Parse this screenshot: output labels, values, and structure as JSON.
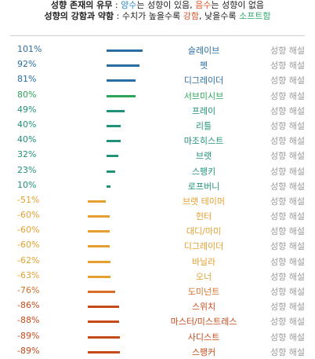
{
  "header": {
    "line1": {
      "bold_prefix": "성향 존재의 유무",
      "sep": " : ",
      "pos": "양수",
      "mid": "는 성향이 있음, ",
      "neg": "음수",
      "end": "는 성향이 없음"
    },
    "line2": {
      "bold_prefix": "성향의 강함과 약함",
      "sep": " : 수치가 높을수록 ",
      "strong": "강함",
      "mid": ", 낮을수록 ",
      "soft": "소프트함"
    }
  },
  "colors": {
    "blue": "#2b6ea3",
    "green": "#2fa35a",
    "teal": "#22917a",
    "orange": "#e5a030",
    "dark_orange": "#d86c28",
    "red_orange": "#c74a1a",
    "positive_label": "#2b8ad0",
    "negative_label": "#d8572a",
    "strong": "#d8572a",
    "soft": "#2ea86a"
  },
  "link_text": "성향 해설",
  "chart_data": {
    "type": "bar",
    "orientation": "horizontal",
    "categories": [
      "슬레이브",
      "펫",
      "디그레이더",
      "서브미시브",
      "프레이",
      "리틀",
      "마조히스트",
      "브랫",
      "스팽키",
      "로프버니",
      "브랫 테이머",
      "헌터",
      "대디/마미",
      "디그레이더",
      "바닐라",
      "오너",
      "도미넌트",
      "스위치",
      "마스터/미스트레스",
      "사디스트",
      "스팽커"
    ],
    "values": [
      101,
      92,
      81,
      80,
      49,
      40,
      40,
      32,
      23,
      10,
      -51,
      -60,
      -60,
      -60,
      -62,
      -63,
      -76,
      -86,
      -88,
      -89,
      -89
    ],
    "labels": [
      "101%",
      "92%",
      "81%",
      "80%",
      "49%",
      "40%",
      "40%",
      "32%",
      "23%",
      "10%",
      "-51%",
      "-60%",
      "-60%",
      "-60%",
      "-62%",
      "-63%",
      "-76%",
      "-86%",
      "-88%",
      "-89%",
      "-89%"
    ],
    "bar_colors": [
      "#2b6ea3",
      "#2b6ea3",
      "#2b6ea3",
      "#2fa35a",
      "#22917a",
      "#22917a",
      "#22917a",
      "#22917a",
      "#22917a",
      "#22917a",
      "#e5a030",
      "#e5a030",
      "#e5a030",
      "#e5a030",
      "#e5a030",
      "#e5a030",
      "#d86c28",
      "#c74a1a",
      "#c74a1a",
      "#c74a1a",
      "#c74a1a"
    ],
    "label_colors": [
      "#2b6ea3",
      "#2b6ea3",
      "#2b6ea3",
      "#2fa35a",
      "#22917a",
      "#22917a",
      "#22917a",
      "#22917a",
      "#22917a",
      "#22917a",
      "#e5a030",
      "#e5a030",
      "#e5a030",
      "#e5a030",
      "#e5a030",
      "#e5a030",
      "#d86c28",
      "#c74a1a",
      "#c74a1a",
      "#c74a1a",
      "#c74a1a"
    ],
    "xlim": [
      -110,
      110
    ],
    "grid": false,
    "legend": "none"
  }
}
